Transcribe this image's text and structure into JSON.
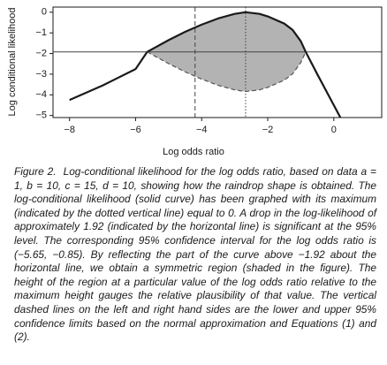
{
  "chart_data": {
    "type": "line",
    "xlabel": "Log odds ratio",
    "ylabel": "Log conditional likelihood",
    "x": [
      -8,
      -7,
      -6,
      -5.65,
      -5,
      -4.5,
      -4,
      -3.5,
      -3,
      -2.67,
      -2.25,
      -2,
      -1.5,
      -1.25,
      -1,
      -0.85,
      -0.5,
      0,
      0.2
    ],
    "series": [
      {
        "color": "#1a1a1a",
        "style": "solid",
        "values": [
          -4.25,
          -3.55,
          -2.75,
          -1.92,
          -1.35,
          -0.95,
          -0.6,
          -0.3,
          -0.08,
          0,
          -0.08,
          -0.2,
          -0.55,
          -0.85,
          -1.4,
          -1.92,
          -3.0,
          -4.5,
          -5.1
        ]
      },
      {
        "color": "#555555",
        "style": "dashed",
        "values": [
          null,
          null,
          null,
          -1.92,
          -2.49,
          -2.89,
          -3.24,
          -3.54,
          -3.76,
          -3.84,
          -3.76,
          -3.64,
          -3.29,
          -2.99,
          -2.44,
          -1.92,
          null,
          null,
          null
        ]
      }
    ],
    "shade_color": "#b3b3b3",
    "hlines": [
      {
        "value": -1.92,
        "style": "solid"
      }
    ],
    "vlines": [
      {
        "value": -4.2,
        "style": "dashed"
      },
      {
        "value": -2.67,
        "style": "dotted"
      }
    ],
    "xlim": [
      -8.5,
      1.45
    ],
    "ylim": [
      -5.1,
      0.25
    ],
    "xticks": [
      {
        "value": -8,
        "label": "−8"
      },
      {
        "value": -6,
        "label": "−6"
      },
      {
        "value": -4,
        "label": "−4"
      },
      {
        "value": -2,
        "label": "−2"
      },
      0
    ],
    "yticks": [
      0,
      {
        "value": -1,
        "label": "−1"
      },
      {
        "value": -2,
        "label": "−2"
      },
      {
        "value": -3,
        "label": "−3"
      },
      {
        "value": -4,
        "label": "−4"
      },
      {
        "value": -5,
        "label": "−5"
      }
    ],
    "grid": false
  },
  "caption": {
    "label": "Figure 2.",
    "text": "Log-conditional likelihood for the log odds ratio, based on data a = 1, b = 10, c = 15, d = 10, showing how the raindrop shape is obtained. The log-conditional likelihood (solid curve) has been graphed with its maximum (indicated by the dotted vertical line) equal to 0. A drop in the log-likelihood of approximately 1.92 (indicated by the horizontal line) is significant at the 95% level. The corresponding 95% confidence interval for the log odds ratio is (−5.65, −0.85). By reflecting the part of the curve above −1.92 about the horizontal line, we obtain a symmetric region (shaded in the figure). The height of the region at a particular value of the log odds ratio relative to the maximum height gauges the relative plausibility of that value. The vertical dashed lines on the left and right hand sides are the lower and upper 95% confidence limits based on the normal approximation and Equations (1) and (2)."
  }
}
